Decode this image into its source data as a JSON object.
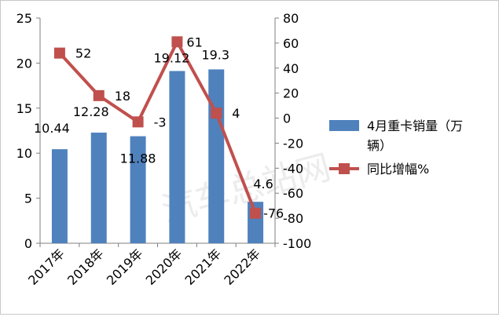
{
  "watermark": "汽车总站网",
  "chart_data": {
    "type": "bar",
    "categories": [
      "2017年",
      "2018年",
      "2019年",
      "2020年",
      "2021年",
      "2022年"
    ],
    "series": [
      {
        "name": "4月重卡销量（万辆）",
        "type": "bar",
        "axis": "left",
        "color": "#4f81bd",
        "values": [
          10.44,
          12.28,
          11.88,
          19.12,
          19.3,
          4.6
        ],
        "labels": [
          "10.44",
          "12.28",
          "11.88",
          "19.12",
          "19.3",
          "4.6"
        ]
      },
      {
        "name": "同比增幅%",
        "type": "line",
        "axis": "right",
        "color": "#c0504d",
        "values": [
          52,
          18,
          -3,
          61,
          4,
          -76
        ],
        "labels": [
          "52",
          "18",
          "-3",
          "61",
          "4",
          "-76"
        ]
      }
    ],
    "y_left": {
      "min": 0,
      "max": 25,
      "step": 5,
      "ticks": [
        "0",
        "5",
        "10",
        "15",
        "20",
        "25"
      ]
    },
    "y_right": {
      "min": -100,
      "max": 80,
      "step": 20,
      "ticks": [
        "-100",
        "-80",
        "-60",
        "-40",
        "-20",
        "0",
        "20",
        "40",
        "60",
        "80"
      ]
    },
    "legend": {
      "position": "right",
      "items": [
        "4月重卡销量（万辆）",
        "同比增幅%"
      ]
    },
    "grid": false
  }
}
